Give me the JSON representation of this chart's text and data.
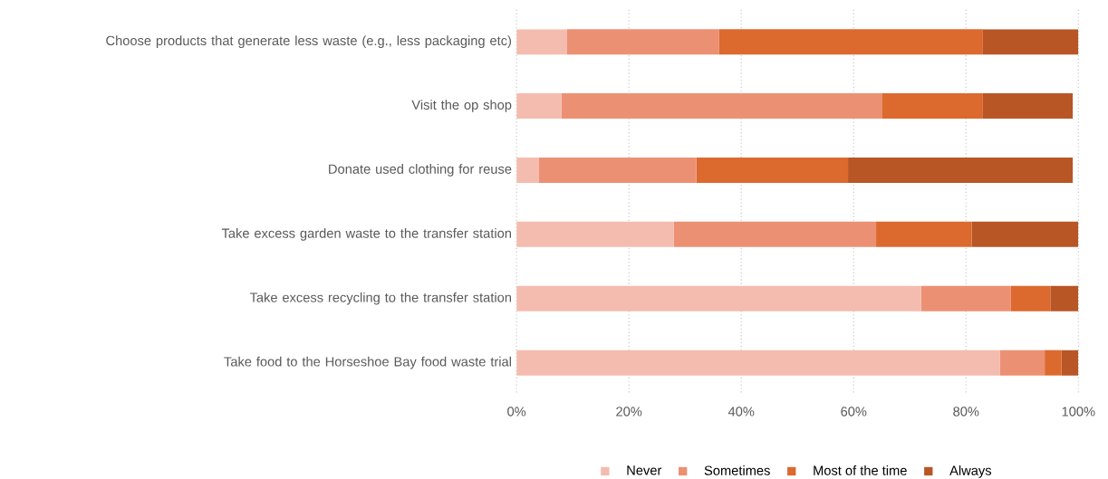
{
  "chart_data": {
    "type": "bar",
    "orientation": "horizontal",
    "stacked": true,
    "categories": [
      "Choose products that generate less waste (e.g., less packaging etc)",
      "Visit the op shop",
      "Donate used clothing for reuse",
      "Take excess garden waste to the transfer station",
      "Take excess recycling to the transfer station",
      "Take food to the Horseshoe Bay food waste trial"
    ],
    "series": [
      {
        "name": "Never",
        "color": "#f4bcaf",
        "values": [
          9,
          8,
          4,
          28,
          72,
          86
        ]
      },
      {
        "name": "Sometimes",
        "color": "#ec9073",
        "values": [
          27,
          57,
          28,
          36,
          16,
          8
        ]
      },
      {
        "name": "Most of the time",
        "color": "#dc692e",
        "values": [
          47,
          18,
          27,
          17,
          7,
          3
        ]
      },
      {
        "name": "Always",
        "color": "#b85626",
        "values": [
          17,
          16,
          40,
          19,
          5,
          3
        ]
      }
    ],
    "xlim": [
      0,
      100
    ],
    "xticks": [
      {
        "value": 0,
        "label": "0%"
      },
      {
        "value": 20,
        "label": "20%"
      },
      {
        "value": 40,
        "label": "40%"
      },
      {
        "value": 60,
        "label": "60%"
      },
      {
        "value": 80,
        "label": "80%"
      },
      {
        "value": 100,
        "label": "100%"
      }
    ],
    "grid": "x",
    "legend": "bottom"
  }
}
